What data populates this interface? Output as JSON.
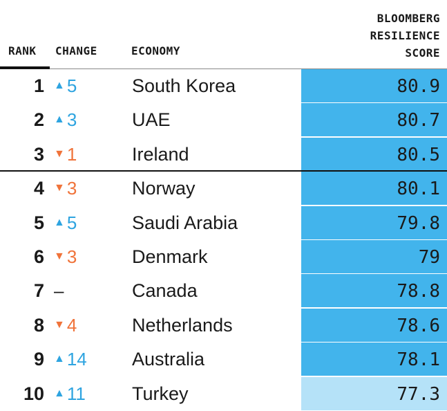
{
  "header": {
    "rank": "RANK",
    "change": "CHANGE",
    "economy": "ECONOMY",
    "score_line1": "BLOOMBERG",
    "score_line2": "RESILIENCE",
    "score_line3": "SCORE"
  },
  "colors": {
    "bar": "#42b4ec",
    "bar_light": "#b5e2f8",
    "up": "#2ea4e0",
    "down": "#f0733a"
  },
  "chart_data": {
    "type": "table",
    "columns": [
      "RANK",
      "CHANGE",
      "ECONOMY",
      "BLOOMBERG RESILIENCE SCORE"
    ],
    "rows": [
      {
        "rank": "1",
        "direction": "up",
        "arrow": "▲",
        "change": "5",
        "economy": "South Korea",
        "score": "80.9",
        "shade": "dark"
      },
      {
        "rank": "2",
        "direction": "up",
        "arrow": "▲",
        "change": "3",
        "economy": "UAE",
        "score": "80.7",
        "shade": "dark"
      },
      {
        "rank": "3",
        "direction": "down",
        "arrow": "▼",
        "change": "1",
        "economy": "Ireland",
        "score": "80.5",
        "shade": "dark"
      },
      {
        "rank": "4",
        "direction": "down",
        "arrow": "▼",
        "change": "3",
        "economy": "Norway",
        "score": "80.1",
        "shade": "dark"
      },
      {
        "rank": "5",
        "direction": "up",
        "arrow": "▲",
        "change": "5",
        "economy": "Saudi Arabia",
        "score": "79.8",
        "shade": "dark"
      },
      {
        "rank": "6",
        "direction": "down",
        "arrow": "▼",
        "change": "3",
        "economy": "Denmark",
        "score": "79",
        "shade": "dark"
      },
      {
        "rank": "7",
        "direction": "flat",
        "arrow": "",
        "change": "–",
        "economy": "Canada",
        "score": "78.8",
        "shade": "dark"
      },
      {
        "rank": "8",
        "direction": "down",
        "arrow": "▼",
        "change": "4",
        "economy": "Netherlands",
        "score": "78.6",
        "shade": "dark"
      },
      {
        "rank": "9",
        "direction": "up",
        "arrow": "▲",
        "change": "14",
        "economy": "Australia",
        "score": "78.1",
        "shade": "dark"
      },
      {
        "rank": "10",
        "direction": "up",
        "arrow": "▲",
        "change": "11",
        "economy": "Turkey",
        "score": "77.3",
        "shade": "light"
      }
    ]
  }
}
